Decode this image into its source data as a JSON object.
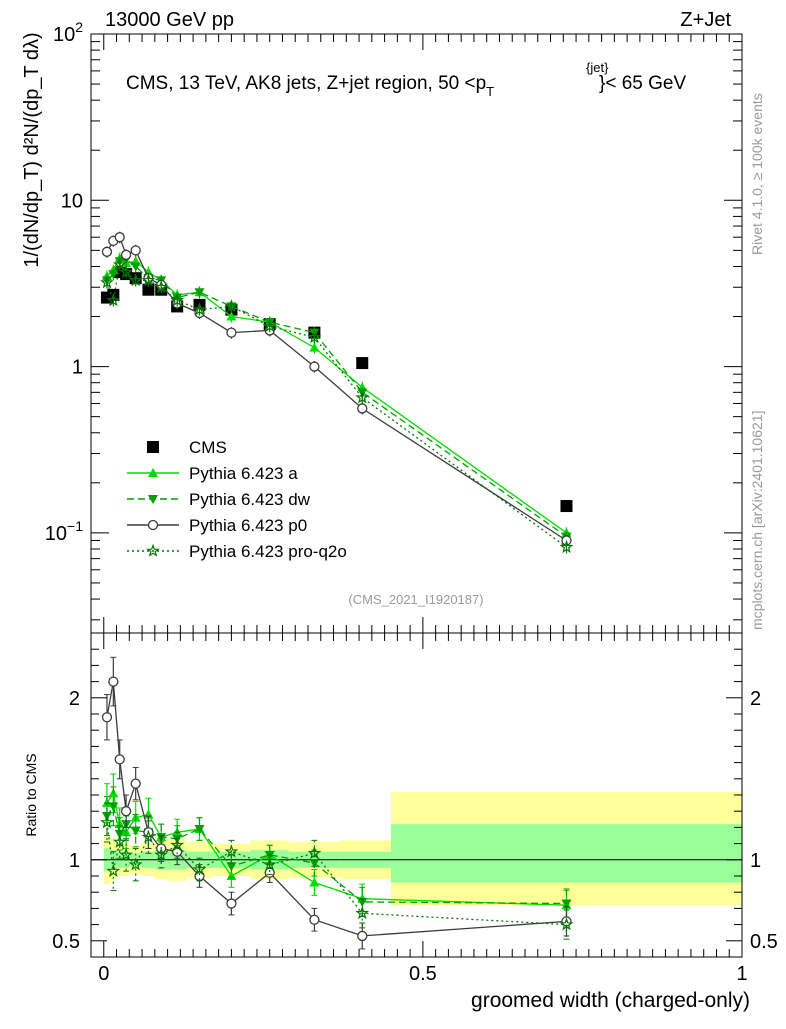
{
  "header": {
    "left": "13000 GeV pp",
    "right": "Z+Jet"
  },
  "side": {
    "rivet": "Rivet 4.1.0, ≥ 100k events",
    "mcplots": "mcplots.cern.ch [arXiv:2401.10621]"
  },
  "colors": {
    "cms": "#000000",
    "a": "#00dd00",
    "dw": "#00a000",
    "p0": "#3c3c3c",
    "pro": "#007800",
    "band_outer": "#ffff99",
    "band_inner": "#99ff99"
  },
  "chart_data": [
    {
      "type": "scatter",
      "panel": "main",
      "title": "CMS, 13 TeV, AK8 jets, Z+jet region, 50 <p_T^{jet}< 65 GeV",
      "title_main": "CMS, 13 TeV, AK8 jets, Z+jet region, 50 <p",
      "title_sub": "T",
      "title_sup": "{jet}",
      "title_end": "}< 65 GeV",
      "ylabel": "1/(dN/dp_T) d²N/(dp_T dλ)",
      "yscale": "log",
      "ylim": [
        0.025,
        100
      ],
      "xlim": [
        -0.02,
        1.0
      ],
      "yticks": [
        {
          "v": 0.1,
          "base": "10",
          "exp": "−1"
        },
        {
          "v": 1,
          "base": "1",
          "exp": ""
        },
        {
          "v": 10,
          "base": "10",
          "exp": ""
        },
        {
          "v": 100,
          "base": "10",
          "exp": "2"
        }
      ],
      "watermark": "(CMS_2021_I1920187)",
      "legend_position": "left",
      "series": [
        {
          "name": "CMS",
          "key": "cms",
          "marker": "square",
          "x": [
            0.005,
            0.015,
            0.025,
            0.035,
            0.05,
            0.07,
            0.09,
            0.115,
            0.15,
            0.2,
            0.26,
            0.33,
            0.405,
            0.725
          ],
          "y": [
            2.6,
            2.7,
            3.7,
            3.6,
            3.4,
            2.9,
            2.9,
            2.3,
            2.35,
            2.2,
            1.8,
            1.6,
            1.05,
            0.145
          ]
        },
        {
          "name": "Pythia 6.423 a",
          "key": "a",
          "marker": "triangle-up",
          "dash": "",
          "x": [
            0.005,
            0.015,
            0.025,
            0.035,
            0.05,
            0.07,
            0.09,
            0.115,
            0.15,
            0.2,
            0.26,
            0.33,
            0.405,
            0.725
          ],
          "y": [
            3.5,
            3.8,
            4.5,
            4.2,
            4.3,
            3.7,
            3.3,
            2.7,
            2.8,
            2.0,
            1.85,
            1.3,
            0.75,
            0.1
          ]
        },
        {
          "name": "Pythia 6.423 dw",
          "key": "dw",
          "marker": "triangle-down",
          "dash": "7,4",
          "x": [
            0.005,
            0.015,
            0.025,
            0.035,
            0.05,
            0.07,
            0.09,
            0.115,
            0.15,
            0.2,
            0.26,
            0.33,
            0.405,
            0.725
          ],
          "y": [
            3.3,
            3.6,
            4.3,
            4.4,
            4.0,
            3.4,
            3.3,
            2.6,
            2.8,
            2.3,
            1.85,
            1.6,
            0.7,
            0.095
          ]
        },
        {
          "name": "Pythia 6.423 p0",
          "key": "p0",
          "marker": "circle",
          "dash": "",
          "x": [
            0.005,
            0.015,
            0.025,
            0.035,
            0.05,
            0.07,
            0.09,
            0.115,
            0.15,
            0.2,
            0.26,
            0.33,
            0.405,
            0.725
          ],
          "y": [
            4.9,
            5.7,
            6.0,
            4.7,
            5.0,
            3.4,
            3.1,
            2.4,
            2.1,
            1.6,
            1.65,
            1.0,
            0.56,
            0.09
          ]
        },
        {
          "name": "Pythia 6.423 pro-q2o",
          "key": "pro",
          "marker": "star",
          "dash": "2,3",
          "x": [
            0.005,
            0.015,
            0.025,
            0.035,
            0.05,
            0.07,
            0.09,
            0.115,
            0.15,
            0.2,
            0.26,
            0.33,
            0.405,
            0.725
          ],
          "y": [
            3.2,
            2.5,
            4.1,
            3.7,
            3.3,
            3.3,
            3.0,
            2.5,
            2.2,
            2.3,
            1.75,
            1.5,
            0.65,
            0.082
          ]
        }
      ],
      "legend": [
        {
          "label": "CMS",
          "key": "cms"
        },
        {
          "label": "Pythia 6.423 a",
          "key": "a"
        },
        {
          "label": "Pythia 6.423 dw",
          "key": "dw"
        },
        {
          "label": "Pythia 6.423 p0",
          "key": "p0"
        },
        {
          "label": "Pythia 6.423 pro-q2o",
          "key": "pro"
        }
      ]
    },
    {
      "type": "scatter",
      "panel": "ratio",
      "ylabel": "Ratio to CMS",
      "xlabel": "groomed width (charged-only)",
      "ylim": [
        0.4,
        2.4
      ],
      "xlim": [
        -0.02,
        1.0
      ],
      "yticks": [
        0.5,
        1,
        2
      ],
      "yticklabels": [
        "0.5",
        "1",
        "2"
      ],
      "xticks": [
        0,
        0.5,
        1
      ],
      "xticklabels": [
        "0",
        "0.5",
        "1"
      ],
      "bands": [
        {
          "x0": 0.0,
          "x1": 0.01,
          "outer": [
            0.85,
            1.15
          ],
          "inner": [
            0.93,
            1.07
          ]
        },
        {
          "x0": 0.01,
          "x1": 0.02,
          "outer": [
            0.87,
            1.13
          ],
          "inner": [
            0.94,
            1.06
          ]
        },
        {
          "x0": 0.02,
          "x1": 0.03,
          "outer": [
            0.9,
            1.1
          ],
          "inner": [
            0.95,
            1.05
          ]
        },
        {
          "x0": 0.03,
          "x1": 0.04,
          "outer": [
            0.9,
            1.1
          ],
          "inner": [
            0.95,
            1.05
          ]
        },
        {
          "x0": 0.04,
          "x1": 0.06,
          "outer": [
            0.91,
            1.09
          ],
          "inner": [
            0.96,
            1.04
          ]
        },
        {
          "x0": 0.06,
          "x1": 0.08,
          "outer": [
            0.9,
            1.1
          ],
          "inner": [
            0.95,
            1.05
          ]
        },
        {
          "x0": 0.08,
          "x1": 0.1,
          "outer": [
            0.88,
            1.12
          ],
          "inner": [
            0.94,
            1.06
          ]
        },
        {
          "x0": 0.1,
          "x1": 0.13,
          "outer": [
            0.87,
            1.13
          ],
          "inner": [
            0.94,
            1.06
          ]
        },
        {
          "x0": 0.13,
          "x1": 0.17,
          "outer": [
            0.89,
            1.11
          ],
          "inner": [
            0.95,
            1.05
          ]
        },
        {
          "x0": 0.17,
          "x1": 0.23,
          "outer": [
            0.9,
            1.1
          ],
          "inner": [
            0.95,
            1.05
          ]
        },
        {
          "x0": 0.23,
          "x1": 0.29,
          "outer": [
            0.88,
            1.12
          ],
          "inner": [
            0.94,
            1.06
          ]
        },
        {
          "x0": 0.29,
          "x1": 0.37,
          "outer": [
            0.89,
            1.11
          ],
          "inner": [
            0.95,
            1.05
          ]
        },
        {
          "x0": 0.37,
          "x1": 0.45,
          "outer": [
            0.88,
            1.12
          ],
          "inner": [
            0.95,
            1.05
          ]
        },
        {
          "x0": 0.45,
          "x1": 1.0,
          "outer": [
            0.72,
            1.42
          ],
          "inner": [
            0.86,
            1.22
          ]
        }
      ],
      "series": [
        {
          "key": "a",
          "marker": "triangle-up",
          "dash": "",
          "x": [
            0.005,
            0.015,
            0.025,
            0.035,
            0.05,
            0.07,
            0.09,
            0.115,
            0.15,
            0.2,
            0.26,
            0.33,
            0.405,
            0.725
          ],
          "y": [
            1.35,
            1.41,
            1.22,
            1.17,
            1.26,
            1.28,
            1.14,
            1.17,
            1.19,
            0.9,
            1.03,
            0.86,
            0.76,
            0.72
          ],
          "err": [
            0.12,
            0.12,
            0.1,
            0.1,
            0.1,
            0.1,
            0.08,
            0.08,
            0.07,
            0.07,
            0.06,
            0.08,
            0.09,
            0.09
          ]
        },
        {
          "key": "dw",
          "marker": "triangle-down",
          "dash": "7,4",
          "x": [
            0.005,
            0.015,
            0.025,
            0.035,
            0.05,
            0.07,
            0.09,
            0.115,
            0.15,
            0.2,
            0.26,
            0.33,
            0.405,
            0.725
          ],
          "y": [
            1.27,
            1.33,
            1.16,
            1.22,
            1.18,
            1.17,
            1.14,
            1.13,
            1.19,
            0.96,
            1.03,
            0.98,
            0.74,
            0.73
          ],
          "err": [
            0.12,
            0.12,
            0.1,
            0.1,
            0.1,
            0.1,
            0.08,
            0.08,
            0.07,
            0.07,
            0.06,
            0.08,
            0.09,
            0.09
          ]
        },
        {
          "key": "p0",
          "marker": "circle",
          "dash": "",
          "x": [
            0.005,
            0.015,
            0.025,
            0.035,
            0.05,
            0.07,
            0.09,
            0.115,
            0.15,
            0.2,
            0.26,
            0.33,
            0.405,
            0.725
          ],
          "y": [
            1.88,
            2.1,
            1.62,
            1.3,
            1.47,
            1.17,
            1.07,
            1.05,
            0.9,
            0.73,
            0.92,
            0.63,
            0.53,
            0.62
          ],
          "err": [
            0.14,
            0.15,
            0.12,
            0.1,
            0.1,
            0.1,
            0.08,
            0.08,
            0.07,
            0.07,
            0.06,
            0.07,
            0.08,
            0.09
          ]
        },
        {
          "key": "pro",
          "marker": "star",
          "dash": "2,3",
          "x": [
            0.005,
            0.015,
            0.025,
            0.035,
            0.05,
            0.07,
            0.09,
            0.115,
            0.15,
            0.2,
            0.26,
            0.33,
            0.405,
            0.725
          ],
          "y": [
            1.23,
            0.93,
            1.11,
            1.03,
            0.97,
            1.14,
            1.03,
            1.09,
            0.94,
            1.05,
            0.97,
            1.04,
            0.67,
            0.6
          ],
          "err": [
            0.12,
            0.12,
            0.1,
            0.1,
            0.1,
            0.1,
            0.08,
            0.08,
            0.07,
            0.07,
            0.06,
            0.08,
            0.09,
            0.09
          ]
        }
      ]
    }
  ]
}
